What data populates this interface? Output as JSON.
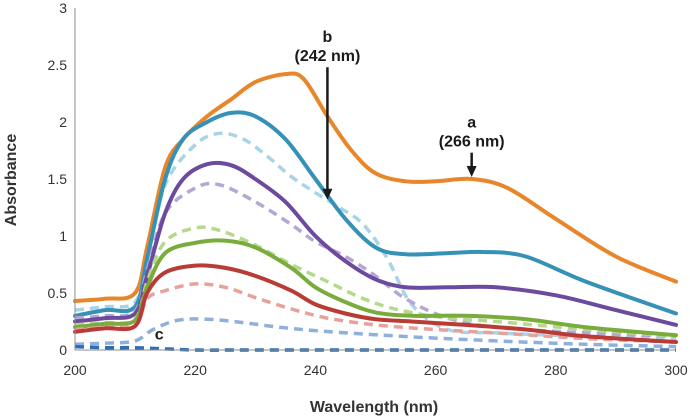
{
  "chart_data": {
    "type": "line",
    "title": "",
    "xlabel": "Wavelength (nm)",
    "ylabel": "Absorbance",
    "xlim": [
      200,
      300
    ],
    "ylim": [
      0,
      3
    ],
    "x_ticks": [
      "200",
      "220",
      "240",
      "260",
      "280",
      "300"
    ],
    "y_ticks": [
      "0",
      "0.5",
      "1",
      "1.5",
      "2",
      "2.5",
      "3"
    ],
    "grid": false,
    "series": [
      {
        "name": "a",
        "color": "#e8862b",
        "style": "solid",
        "points": [
          [
            200,
            0.43
          ],
          [
            205,
            0.45
          ],
          [
            210,
            0.5
          ],
          [
            212,
            0.9
          ],
          [
            215,
            1.6
          ],
          [
            218,
            1.85
          ],
          [
            222,
            2.05
          ],
          [
            226,
            2.2
          ],
          [
            230,
            2.35
          ],
          [
            235,
            2.42
          ],
          [
            238,
            2.38
          ],
          [
            242,
            2.05
          ],
          [
            246,
            1.75
          ],
          [
            250,
            1.55
          ],
          [
            255,
            1.48
          ],
          [
            260,
            1.48
          ],
          [
            266,
            1.5
          ],
          [
            272,
            1.42
          ],
          [
            280,
            1.15
          ],
          [
            290,
            0.82
          ],
          [
            300,
            0.6
          ]
        ]
      },
      {
        "name": "",
        "color": "#a8d4e6",
        "style": "dashed",
        "points": [
          [
            200,
            0.35
          ],
          [
            205,
            0.38
          ],
          [
            210,
            0.42
          ],
          [
            212,
            0.8
          ],
          [
            215,
            1.45
          ],
          [
            220,
            1.8
          ],
          [
            224,
            1.9
          ],
          [
            228,
            1.85
          ],
          [
            232,
            1.7
          ],
          [
            236,
            1.52
          ],
          [
            240,
            1.38
          ],
          [
            244,
            1.25
          ],
          [
            248,
            1.1
          ],
          [
            252,
            0.8
          ],
          [
            256,
            0.4
          ],
          [
            262,
            0.18
          ],
          [
            270,
            0.15
          ],
          [
            285,
            0.12
          ],
          [
            300,
            0.1
          ]
        ]
      },
      {
        "name": "",
        "color": "#3592b6",
        "style": "solid",
        "points": [
          [
            200,
            0.3
          ],
          [
            205,
            0.35
          ],
          [
            210,
            0.38
          ],
          [
            212,
            0.8
          ],
          [
            215,
            1.5
          ],
          [
            218,
            1.85
          ],
          [
            222,
            2.0
          ],
          [
            226,
            2.08
          ],
          [
            230,
            2.05
          ],
          [
            235,
            1.85
          ],
          [
            240,
            1.5
          ],
          [
            245,
            1.15
          ],
          [
            250,
            0.9
          ],
          [
            255,
            0.84
          ],
          [
            262,
            0.85
          ],
          [
            268,
            0.86
          ],
          [
            275,
            0.82
          ],
          [
            285,
            0.6
          ],
          [
            300,
            0.32
          ]
        ]
      },
      {
        "name": "",
        "color": "#b4a7d6",
        "style": "dashed",
        "points": [
          [
            200,
            0.28
          ],
          [
            205,
            0.3
          ],
          [
            210,
            0.34
          ],
          [
            212,
            0.7
          ],
          [
            215,
            1.2
          ],
          [
            220,
            1.42
          ],
          [
            224,
            1.45
          ],
          [
            230,
            1.3
          ],
          [
            236,
            1.1
          ],
          [
            240,
            0.95
          ],
          [
            245,
            0.82
          ],
          [
            250,
            0.65
          ],
          [
            255,
            0.45
          ],
          [
            262,
            0.28
          ],
          [
            270,
            0.2
          ],
          [
            285,
            0.15
          ],
          [
            300,
            0.12
          ]
        ]
      },
      {
        "name": "",
        "color": "#6c4a9e",
        "style": "solid",
        "points": [
          [
            200,
            0.25
          ],
          [
            205,
            0.28
          ],
          [
            210,
            0.32
          ],
          [
            212,
            0.65
          ],
          [
            215,
            1.2
          ],
          [
            218,
            1.5
          ],
          [
            222,
            1.63
          ],
          [
            226,
            1.62
          ],
          [
            230,
            1.5
          ],
          [
            235,
            1.3
          ],
          [
            240,
            1.0
          ],
          [
            245,
            0.78
          ],
          [
            250,
            0.62
          ],
          [
            255,
            0.55
          ],
          [
            262,
            0.55
          ],
          [
            270,
            0.55
          ],
          [
            280,
            0.48
          ],
          [
            290,
            0.35
          ],
          [
            300,
            0.22
          ]
        ]
      },
      {
        "name": "",
        "color": "#b5d88a",
        "style": "dashed",
        "points": [
          [
            200,
            0.22
          ],
          [
            205,
            0.24
          ],
          [
            210,
            0.27
          ],
          [
            212,
            0.6
          ],
          [
            215,
            0.95
          ],
          [
            220,
            1.07
          ],
          [
            224,
            1.05
          ],
          [
            230,
            0.92
          ],
          [
            236,
            0.75
          ],
          [
            242,
            0.6
          ],
          [
            248,
            0.45
          ],
          [
            254,
            0.35
          ],
          [
            262,
            0.28
          ],
          [
            270,
            0.25
          ],
          [
            285,
            0.18
          ],
          [
            300,
            0.12
          ]
        ]
      },
      {
        "name": "",
        "color": "#7aac3d",
        "style": "solid",
        "points": [
          [
            200,
            0.2
          ],
          [
            205,
            0.23
          ],
          [
            210,
            0.26
          ],
          [
            212,
            0.55
          ],
          [
            215,
            0.85
          ],
          [
            220,
            0.94
          ],
          [
            225,
            0.96
          ],
          [
            230,
            0.9
          ],
          [
            236,
            0.72
          ],
          [
            240,
            0.55
          ],
          [
            245,
            0.42
          ],
          [
            250,
            0.33
          ],
          [
            256,
            0.3
          ],
          [
            265,
            0.3
          ],
          [
            275,
            0.27
          ],
          [
            285,
            0.2
          ],
          [
            300,
            0.13
          ]
        ]
      },
      {
        "name": "",
        "color": "#e8a09a",
        "style": "dashed",
        "points": [
          [
            200,
            0.18
          ],
          [
            205,
            0.2
          ],
          [
            210,
            0.22
          ],
          [
            212,
            0.45
          ],
          [
            215,
            0.52
          ],
          [
            220,
            0.58
          ],
          [
            225,
            0.55
          ],
          [
            230,
            0.46
          ],
          [
            236,
            0.36
          ],
          [
            242,
            0.28
          ],
          [
            250,
            0.22
          ],
          [
            260,
            0.18
          ],
          [
            270,
            0.15
          ],
          [
            285,
            0.1
          ],
          [
            300,
            0.07
          ]
        ]
      },
      {
        "name": "",
        "color": "#b83b36",
        "style": "solid",
        "points": [
          [
            200,
            0.16
          ],
          [
            205,
            0.19
          ],
          [
            210,
            0.21
          ],
          [
            212,
            0.5
          ],
          [
            215,
            0.68
          ],
          [
            220,
            0.74
          ],
          [
            225,
            0.72
          ],
          [
            230,
            0.65
          ],
          [
            236,
            0.52
          ],
          [
            240,
            0.4
          ],
          [
            245,
            0.32
          ],
          [
            250,
            0.27
          ],
          [
            256,
            0.25
          ],
          [
            265,
            0.22
          ],
          [
            275,
            0.18
          ],
          [
            285,
            0.12
          ],
          [
            300,
            0.07
          ]
        ]
      },
      {
        "name": "",
        "color": "#8fb0dc",
        "style": "dashed",
        "points": [
          [
            200,
            0.05
          ],
          [
            205,
            0.06
          ],
          [
            210,
            0.08
          ],
          [
            213,
            0.18
          ],
          [
            217,
            0.26
          ],
          [
            222,
            0.27
          ],
          [
            228,
            0.24
          ],
          [
            234,
            0.2
          ],
          [
            240,
            0.17
          ],
          [
            248,
            0.14
          ],
          [
            258,
            0.11
          ],
          [
            270,
            0.08
          ],
          [
            285,
            0.05
          ],
          [
            300,
            0.03
          ]
        ]
      },
      {
        "name": "c",
        "color": "#2f6fb1",
        "style": "dashed",
        "points": [
          [
            200,
            0.03
          ],
          [
            205,
            0.02
          ],
          [
            210,
            0.02
          ],
          [
            215,
            0.01
          ],
          [
            220,
            0.0
          ],
          [
            230,
            0.0
          ],
          [
            250,
            0.0
          ],
          [
            275,
            0.0
          ],
          [
            300,
            0.0
          ]
        ]
      }
    ],
    "annotations": [
      {
        "label": "a",
        "sublabel": "(266 nm)",
        "x": 266,
        "y": 1.5,
        "label_y": 1.95
      },
      {
        "label": "b",
        "sublabel": "(242 nm)",
        "x": 242,
        "y": 1.3,
        "label_y": 2.7
      },
      {
        "label": "c",
        "x": 220,
        "y": 0.02
      }
    ]
  }
}
